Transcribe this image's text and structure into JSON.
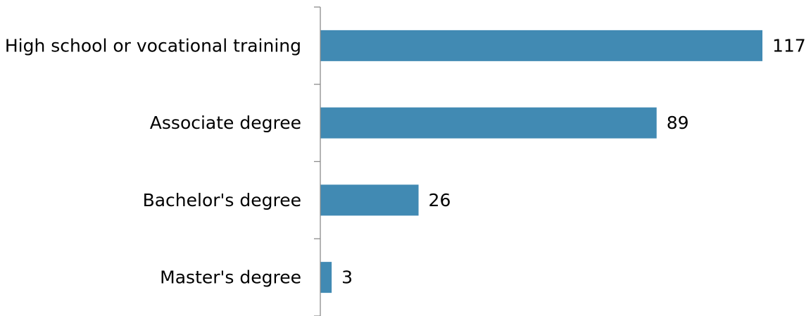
{
  "chart_data": {
    "type": "bar",
    "orientation": "horizontal",
    "categories": [
      "High school or vocational training",
      "Associate degree",
      "Bachelor's degree",
      "Master's degree"
    ],
    "values": [
      117,
      89,
      26,
      3
    ],
    "data_labels": [
      "117",
      "89",
      "26",
      "3"
    ],
    "title": "",
    "xlabel": "",
    "ylabel": "",
    "xlim": [
      0,
      117
    ],
    "grid": false,
    "legend": "none",
    "bar_color": "#418ab3"
  }
}
